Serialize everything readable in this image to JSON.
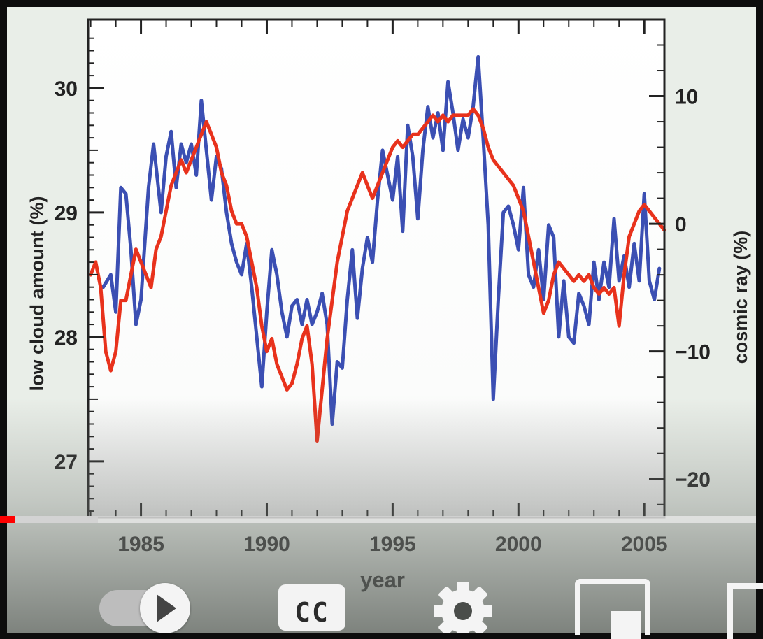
{
  "chart_data": {
    "type": "line",
    "title": "",
    "xlabel": "year",
    "ylabel": "low cloud amount (%)",
    "y2label": "cosmic ray (%)",
    "xlim": [
      1982.9,
      2005.8
    ],
    "ylim": [
      26.55,
      30.55
    ],
    "y2lim": [
      -23,
      16
    ],
    "x_ticks": [
      "1985",
      "1990",
      "1995",
      "2000",
      "2005"
    ],
    "y_ticks": [
      "27",
      "28",
      "29",
      "30"
    ],
    "y2_ticks": [
      "−20",
      "−10",
      "0",
      "10"
    ],
    "legend": "none",
    "grid": false,
    "series": [
      {
        "axis": "left",
        "color": "#3b4fb3",
        "points": [
          [
            1983.5,
            28.4
          ],
          [
            1983.8,
            28.5
          ],
          [
            1984.0,
            28.2
          ],
          [
            1984.2,
            29.2
          ],
          [
            1984.4,
            29.15
          ],
          [
            1984.6,
            28.7
          ],
          [
            1984.8,
            28.1
          ],
          [
            1985.0,
            28.3
          ],
          [
            1985.3,
            29.2
          ],
          [
            1985.5,
            29.55
          ],
          [
            1985.8,
            29.0
          ],
          [
            1986.0,
            29.45
          ],
          [
            1986.2,
            29.65
          ],
          [
            1986.4,
            29.2
          ],
          [
            1986.6,
            29.55
          ],
          [
            1986.8,
            29.4
          ],
          [
            1987.0,
            29.55
          ],
          [
            1987.2,
            29.3
          ],
          [
            1987.4,
            29.9
          ],
          [
            1987.6,
            29.5
          ],
          [
            1987.8,
            29.1
          ],
          [
            1988.0,
            29.45
          ],
          [
            1988.2,
            29.35
          ],
          [
            1988.4,
            29.0
          ],
          [
            1988.6,
            28.75
          ],
          [
            1988.8,
            28.6
          ],
          [
            1989.0,
            28.5
          ],
          [
            1989.2,
            28.75
          ],
          [
            1989.4,
            28.4
          ],
          [
            1989.6,
            28.0
          ],
          [
            1989.8,
            27.6
          ],
          [
            1990.0,
            28.2
          ],
          [
            1990.2,
            28.7
          ],
          [
            1990.4,
            28.5
          ],
          [
            1990.6,
            28.2
          ],
          [
            1990.8,
            28.0
          ],
          [
            1991.0,
            28.25
          ],
          [
            1991.2,
            28.3
          ],
          [
            1991.4,
            28.1
          ],
          [
            1991.6,
            28.3
          ],
          [
            1991.8,
            28.1
          ],
          [
            1992.0,
            28.2
          ],
          [
            1992.2,
            28.35
          ],
          [
            1992.4,
            28.1
          ],
          [
            1992.6,
            27.3
          ],
          [
            1992.8,
            27.8
          ],
          [
            1993.0,
            27.75
          ],
          [
            1993.2,
            28.3
          ],
          [
            1993.4,
            28.7
          ],
          [
            1993.6,
            28.15
          ],
          [
            1993.8,
            28.55
          ],
          [
            1994.0,
            28.8
          ],
          [
            1994.2,
            28.6
          ],
          [
            1994.4,
            29.1
          ],
          [
            1994.6,
            29.5
          ],
          [
            1994.8,
            29.3
          ],
          [
            1995.0,
            29.1
          ],
          [
            1995.2,
            29.45
          ],
          [
            1995.4,
            28.85
          ],
          [
            1995.6,
            29.7
          ],
          [
            1995.8,
            29.45
          ],
          [
            1996.0,
            28.95
          ],
          [
            1996.2,
            29.5
          ],
          [
            1996.4,
            29.85
          ],
          [
            1996.6,
            29.6
          ],
          [
            1996.8,
            29.8
          ],
          [
            1997.0,
            29.5
          ],
          [
            1997.2,
            30.05
          ],
          [
            1997.4,
            29.8
          ],
          [
            1997.6,
            29.5
          ],
          [
            1997.8,
            29.75
          ],
          [
            1998.0,
            29.6
          ],
          [
            1998.2,
            29.85
          ],
          [
            1998.4,
            30.25
          ],
          [
            1998.6,
            29.6
          ],
          [
            1998.8,
            28.9
          ],
          [
            1999.0,
            27.5
          ],
          [
            1999.2,
            28.3
          ],
          [
            1999.4,
            29.0
          ],
          [
            1999.6,
            29.05
          ],
          [
            1999.8,
            28.9
          ],
          [
            2000.0,
            28.7
          ],
          [
            2000.2,
            29.2
          ],
          [
            2000.4,
            28.5
          ],
          [
            2000.6,
            28.4
          ],
          [
            2000.8,
            28.7
          ],
          [
            2001.0,
            28.3
          ],
          [
            2001.2,
            28.9
          ],
          [
            2001.4,
            28.8
          ],
          [
            2001.6,
            28.0
          ],
          [
            2001.8,
            28.45
          ],
          [
            2002.0,
            28.0
          ],
          [
            2002.2,
            27.95
          ],
          [
            2002.4,
            28.35
          ],
          [
            2002.6,
            28.25
          ],
          [
            2002.8,
            28.1
          ],
          [
            2003.0,
            28.6
          ],
          [
            2003.2,
            28.3
          ],
          [
            2003.4,
            28.6
          ],
          [
            2003.6,
            28.4
          ],
          [
            2003.8,
            28.95
          ],
          [
            2004.0,
            28.45
          ],
          [
            2004.2,
            28.65
          ],
          [
            2004.4,
            28.4
          ],
          [
            2004.6,
            28.75
          ],
          [
            2004.8,
            28.45
          ],
          [
            2005.0,
            29.15
          ],
          [
            2005.2,
            28.45
          ],
          [
            2005.4,
            28.3
          ],
          [
            2005.6,
            28.55
          ]
        ]
      },
      {
        "axis": "right",
        "color": "#e8321c",
        "points": [
          [
            1983.0,
            -4
          ],
          [
            1983.2,
            -3
          ],
          [
            1983.4,
            -5
          ],
          [
            1983.6,
            -10
          ],
          [
            1983.8,
            -11.5
          ],
          [
            1984.0,
            -10
          ],
          [
            1984.2,
            -6
          ],
          [
            1984.4,
            -6
          ],
          [
            1984.6,
            -4
          ],
          [
            1984.8,
            -2
          ],
          [
            1985.0,
            -3
          ],
          [
            1985.2,
            -4
          ],
          [
            1985.4,
            -5
          ],
          [
            1985.6,
            -2
          ],
          [
            1985.8,
            -1
          ],
          [
            1986.0,
            1
          ],
          [
            1986.2,
            3
          ],
          [
            1986.4,
            4
          ],
          [
            1986.6,
            5
          ],
          [
            1986.8,
            4
          ],
          [
            1987.0,
            5
          ],
          [
            1987.2,
            6
          ],
          [
            1987.4,
            7
          ],
          [
            1987.6,
            8
          ],
          [
            1987.8,
            7
          ],
          [
            1988.0,
            6
          ],
          [
            1988.2,
            4
          ],
          [
            1988.4,
            3
          ],
          [
            1988.6,
            1
          ],
          [
            1988.8,
            0
          ],
          [
            1989.0,
            0
          ],
          [
            1989.2,
            -1
          ],
          [
            1989.4,
            -3
          ],
          [
            1989.6,
            -5
          ],
          [
            1989.8,
            -8
          ],
          [
            1990.0,
            -10
          ],
          [
            1990.2,
            -9
          ],
          [
            1990.4,
            -11
          ],
          [
            1990.6,
            -12
          ],
          [
            1990.8,
            -13
          ],
          [
            1991.0,
            -12.5
          ],
          [
            1991.2,
            -11
          ],
          [
            1991.4,
            -9
          ],
          [
            1991.6,
            -8
          ],
          [
            1991.8,
            -11
          ],
          [
            1992.0,
            -17
          ],
          [
            1992.2,
            -13
          ],
          [
            1992.4,
            -9
          ],
          [
            1992.6,
            -6
          ],
          [
            1992.8,
            -3
          ],
          [
            1993.0,
            -1
          ],
          [
            1993.2,
            1
          ],
          [
            1993.4,
            2
          ],
          [
            1993.6,
            3
          ],
          [
            1993.8,
            4
          ],
          [
            1994.0,
            3
          ],
          [
            1994.2,
            2
          ],
          [
            1994.4,
            3
          ],
          [
            1994.6,
            4
          ],
          [
            1994.8,
            5
          ],
          [
            1995.0,
            6
          ],
          [
            1995.2,
            6.5
          ],
          [
            1995.4,
            6
          ],
          [
            1995.6,
            6.5
          ],
          [
            1995.8,
            7
          ],
          [
            1996.0,
            7
          ],
          [
            1996.2,
            7.5
          ],
          [
            1996.4,
            8
          ],
          [
            1996.6,
            8.5
          ],
          [
            1996.8,
            8
          ],
          [
            1997.0,
            8.5
          ],
          [
            1997.2,
            8
          ],
          [
            1997.4,
            8.5
          ],
          [
            1997.6,
            8.5
          ],
          [
            1997.8,
            8.5
          ],
          [
            1998.0,
            8.5
          ],
          [
            1998.2,
            9
          ],
          [
            1998.4,
            8.5
          ],
          [
            1998.6,
            7.5
          ],
          [
            1998.8,
            6
          ],
          [
            1999.0,
            5
          ],
          [
            1999.2,
            4.5
          ],
          [
            1999.4,
            4
          ],
          [
            1999.6,
            3.5
          ],
          [
            1999.8,
            3
          ],
          [
            2000.0,
            2
          ],
          [
            2000.2,
            1
          ],
          [
            2000.4,
            -1
          ],
          [
            2000.6,
            -3
          ],
          [
            2000.8,
            -5
          ],
          [
            2001.0,
            -7
          ],
          [
            2001.2,
            -6
          ],
          [
            2001.4,
            -4
          ],
          [
            2001.6,
            -3
          ],
          [
            2001.8,
            -3.5
          ],
          [
            2002.0,
            -4
          ],
          [
            2002.2,
            -4.5
          ],
          [
            2002.4,
            -4
          ],
          [
            2002.6,
            -4.5
          ],
          [
            2002.8,
            -4
          ],
          [
            2003.0,
            -5
          ],
          [
            2003.2,
            -5.5
          ],
          [
            2003.4,
            -5
          ],
          [
            2003.6,
            -5.5
          ],
          [
            2003.8,
            -5
          ],
          [
            2004.0,
            -8
          ],
          [
            2004.2,
            -4
          ],
          [
            2004.4,
            -1
          ],
          [
            2004.6,
            0
          ],
          [
            2004.8,
            1
          ],
          [
            2005.0,
            1.5
          ],
          [
            2005.2,
            1
          ],
          [
            2005.4,
            0.5
          ],
          [
            2005.6,
            0
          ],
          [
            2005.8,
            -0.5
          ]
        ]
      }
    ]
  },
  "player": {
    "progress_fraction": 0.02,
    "captions_label": "CC",
    "icons": [
      "autoplay-toggle-icon",
      "captions-icon",
      "gear-icon",
      "miniplayer-icon",
      "fullscreen-icon"
    ]
  }
}
